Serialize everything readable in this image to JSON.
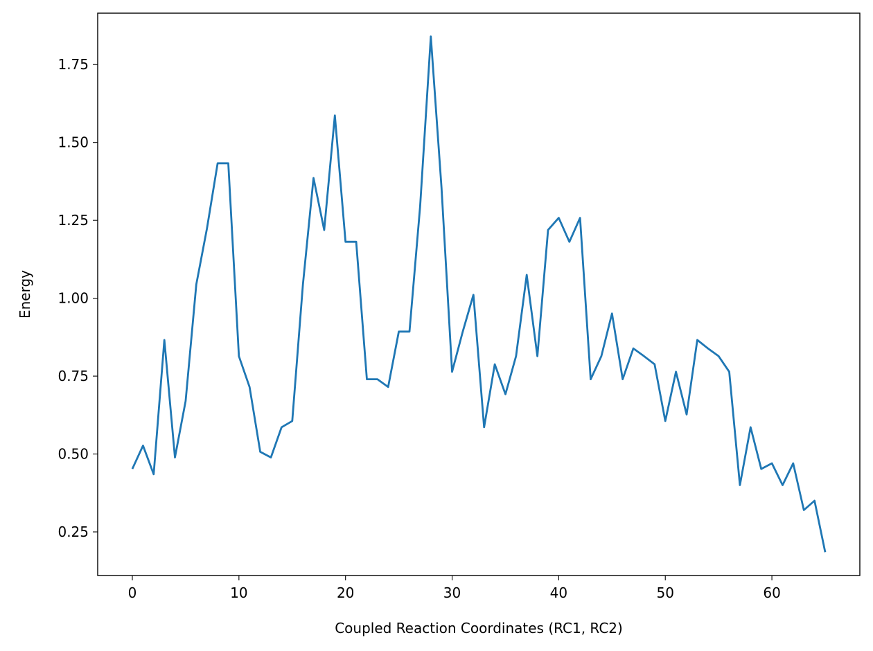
{
  "chart_data": {
    "type": "line",
    "title": "",
    "xlabel": "Coupled Reaction Coordinates (RC1, RC2)",
    "ylabel": "Energy",
    "xlim": [
      -3.25,
      68.25
    ],
    "ylim": [
      0.11,
      1.915
    ],
    "xticks": [
      0,
      10,
      20,
      30,
      40,
      50,
      60
    ],
    "xtick_labels": [
      "0",
      "10",
      "20",
      "30",
      "40",
      "50",
      "60"
    ],
    "yticks": [
      0.25,
      0.5,
      0.75,
      1.0,
      1.25,
      1.5,
      1.75
    ],
    "ytick_labels": [
      "0.25",
      "0.50",
      "0.75",
      "1.00",
      "1.25",
      "1.50",
      "1.75"
    ],
    "grid": false,
    "series": [
      {
        "color": "#1f77b4",
        "x": [
          0,
          1,
          2,
          3,
          4,
          5,
          6,
          7,
          8,
          9,
          10,
          11,
          12,
          13,
          14,
          15,
          16,
          17,
          18,
          19,
          20,
          21,
          22,
          23,
          24,
          25,
          26,
          27,
          28,
          29,
          30,
          31,
          32,
          33,
          34,
          35,
          36,
          37,
          38,
          39,
          40,
          41,
          42,
          43,
          44,
          45,
          46,
          47,
          48,
          49,
          50,
          51,
          52,
          53,
          54,
          55,
          56,
          57,
          58,
          59,
          60,
          61,
          62,
          63,
          64,
          65
        ],
        "values": [
          0.452,
          0.527,
          0.435,
          0.866,
          0.489,
          0.67,
          1.044,
          1.224,
          1.433,
          1.433,
          0.814,
          0.715,
          0.507,
          0.489,
          0.586,
          0.606,
          1.044,
          1.386,
          1.219,
          1.587,
          1.181,
          1.181,
          0.74,
          0.74,
          0.715,
          0.893,
          0.893,
          1.296,
          1.84,
          1.356,
          0.764,
          0.893,
          1.011,
          0.586,
          0.788,
          0.692,
          0.814,
          1.075,
          0.814,
          1.219,
          1.258,
          1.181,
          1.258,
          0.74,
          0.814,
          0.951,
          0.74,
          0.839,
          0.814,
          0.788,
          0.606,
          0.764,
          0.627,
          0.866,
          0.839,
          0.814,
          0.764,
          0.4,
          0.586,
          0.452,
          0.47,
          0.4,
          0.47,
          0.32,
          0.35,
          0.185
        ]
      }
    ]
  }
}
